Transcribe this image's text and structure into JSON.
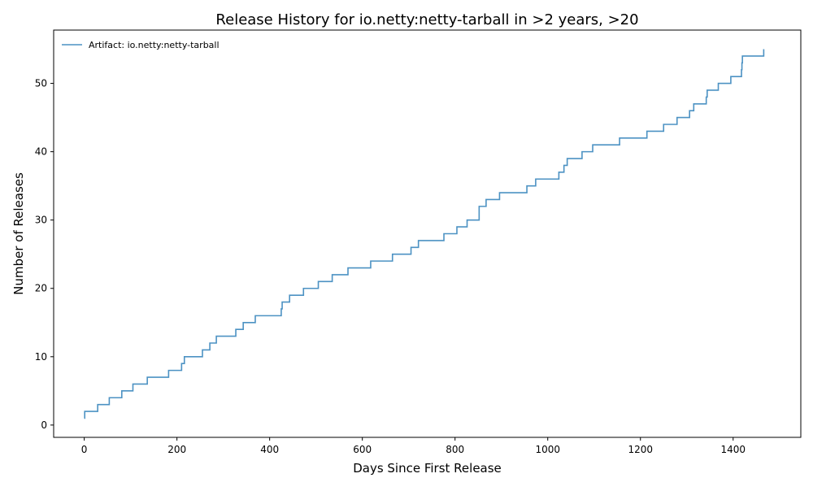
{
  "chart_data": {
    "type": "line",
    "step": "post",
    "title": "Release History for io.netty:netty-tarball in >2 years, >20",
    "xlabel": "Days Since First Release",
    "ylabel": "Number of Releases",
    "xlim": [
      -66,
      1546
    ],
    "ylim": [
      -1.8,
      57.8
    ],
    "xticks": [
      0,
      200,
      400,
      600,
      800,
      1000,
      1200,
      1400
    ],
    "yticks": [
      0,
      10,
      20,
      30,
      40,
      50
    ],
    "grid": false,
    "legend_position": "top-left",
    "series_color": "#1f77b4",
    "series": [
      {
        "name": "Artifact: io.netty:netty-tarball",
        "x": [
          0,
          1,
          29,
          54,
          81,
          105,
          136,
          182,
          210,
          216,
          255,
          271,
          285,
          327,
          343,
          369,
          425,
          427,
          443,
          473,
          505,
          535,
          569,
          618,
          665,
          705,
          721,
          776,
          804,
          826,
          852,
          867,
          896,
          955,
          974,
          1024,
          1035,
          1042,
          1074,
          1097,
          1155,
          1214,
          1250,
          1279,
          1306,
          1315,
          1342,
          1344,
          1368,
          1395,
          1418,
          1419,
          1420,
          1466
        ],
        "y": [
          1,
          2,
          3,
          4,
          5,
          6,
          7,
          8,
          9,
          10,
          11,
          12,
          13,
          14,
          15,
          16,
          17,
          18,
          19,
          20,
          21,
          22,
          23,
          24,
          25,
          26,
          27,
          28,
          29,
          30,
          32,
          33,
          34,
          35,
          36,
          37,
          38,
          39,
          40,
          41,
          42,
          43,
          44,
          45,
          46,
          47,
          48,
          49,
          50,
          51,
          52,
          53,
          54,
          55
        ]
      }
    ]
  }
}
